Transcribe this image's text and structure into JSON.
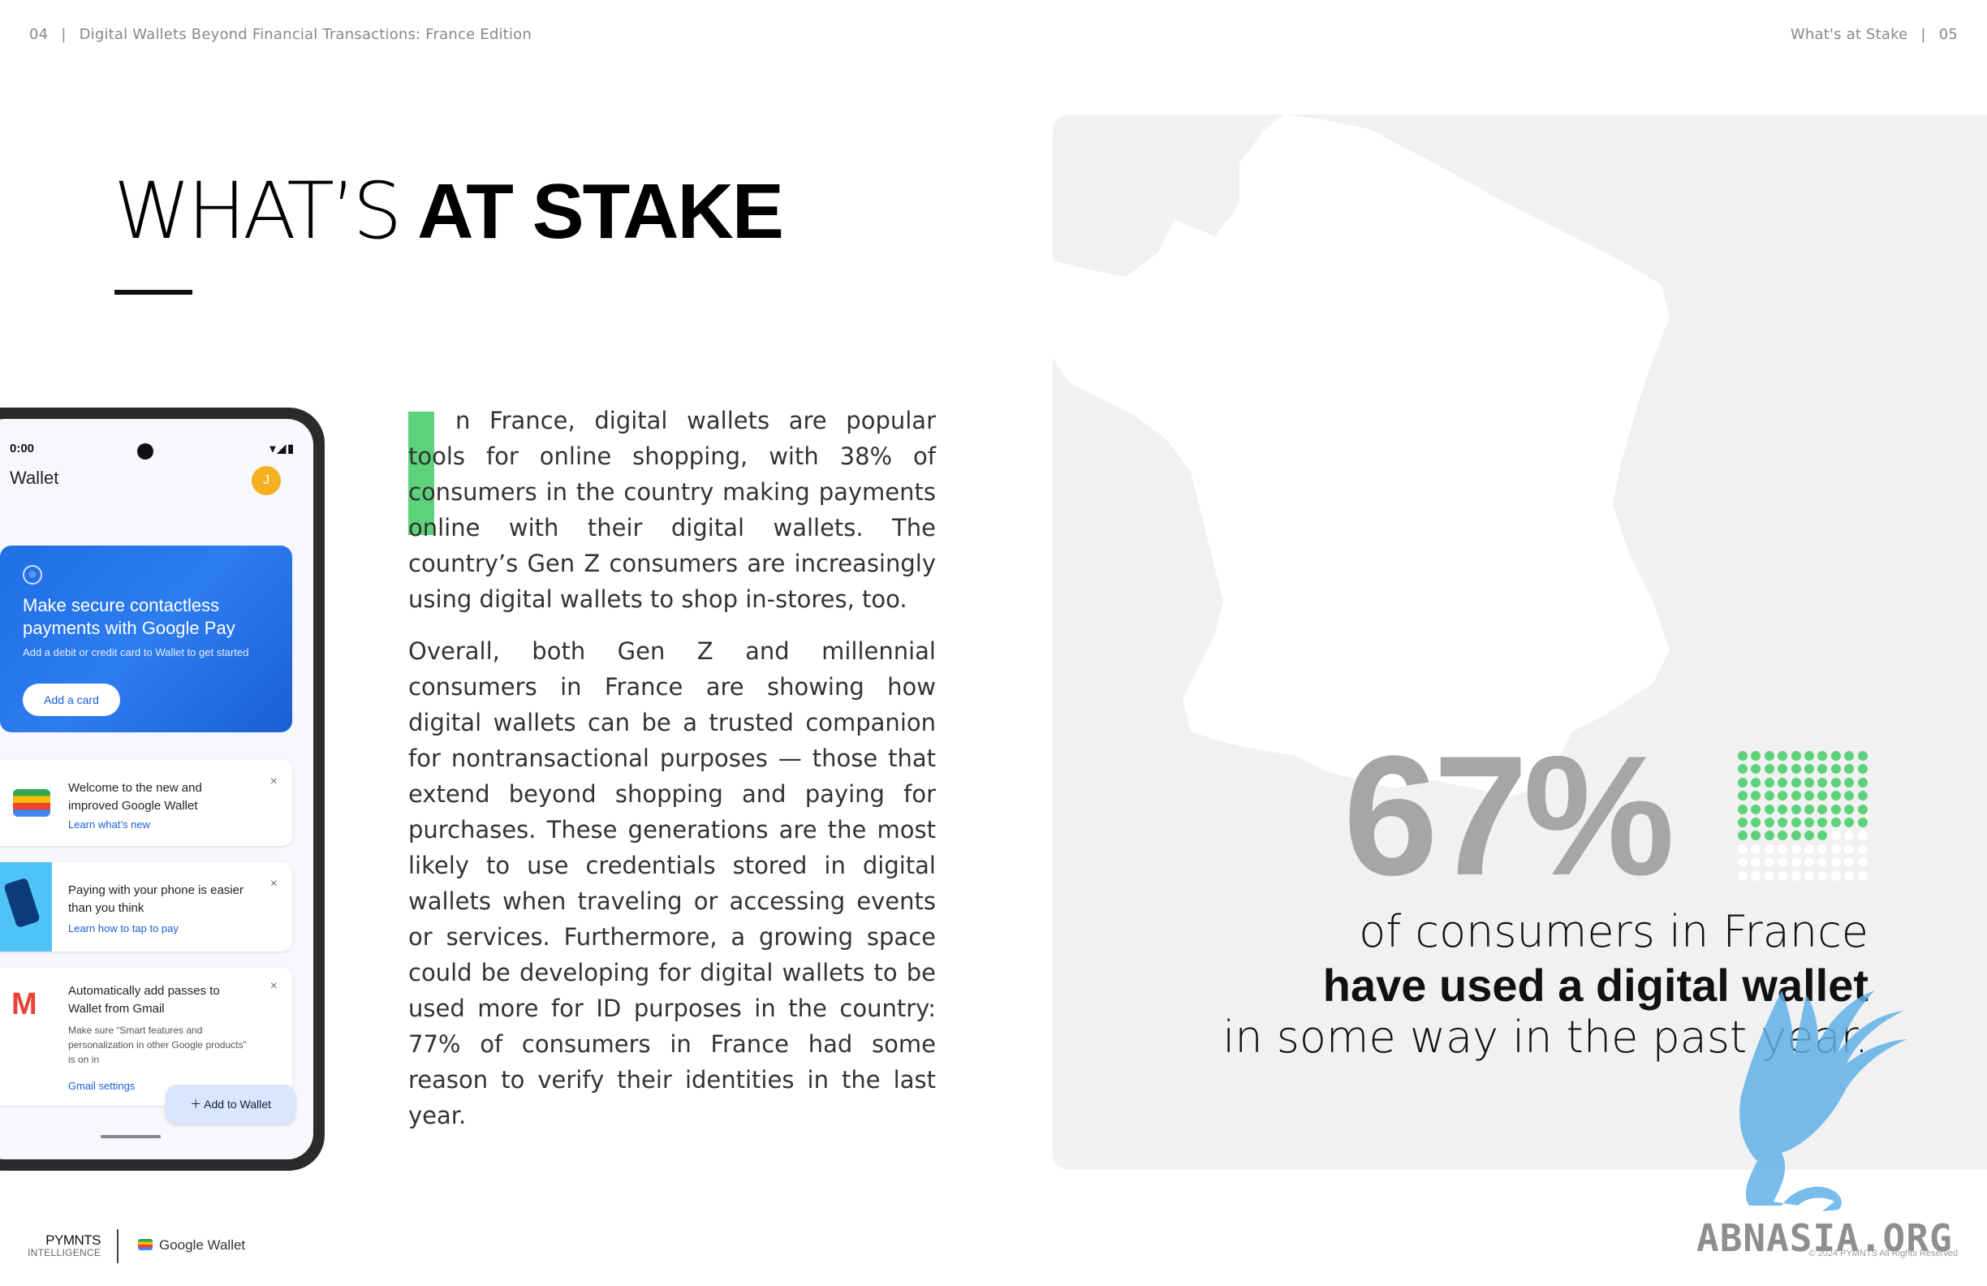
{
  "header": {
    "left_page": "04",
    "left_title": "Digital Wallets Beyond Financial Transactions: France Edition",
    "right_title": "What's at Stake",
    "right_page": "05",
    "separator": "|"
  },
  "title": {
    "light": "WHAT’S",
    "bold": "AT STAKE"
  },
  "phone": {
    "time": "0:00",
    "signal": "▾◢▮",
    "app_title": "Wallet",
    "avatar_letter": "J",
    "promo": {
      "icon": "◎",
      "title": "Make secure contactless payments with Google Pay",
      "subtitle": "Add a debit or credit card to Wallet to get started",
      "button": "Add a card"
    },
    "cards": [
      {
        "title": "Welcome to the new and improved Google Wallet",
        "link": "Learn what’s new",
        "close": "×"
      },
      {
        "title": "Paying with your phone is easier than you think",
        "link": "Learn how to tap to pay",
        "close": "×"
      },
      {
        "title": "Automatically add passes to Wallet from Gmail",
        "desc": "Make sure “Smart features and personalization in other Google products” is on in",
        "link": "Gmail settings",
        "close": "×"
      }
    ],
    "fab_label": "＋  Add to Wallet"
  },
  "body": {
    "paragraph1": "n France, digital wallets are popular tools for online shopping, with 38% of consumers in the country making payments online with their digital wallets. The country’s Gen Z consumers are increasingly using digital wallets to shop in-stores, too.",
    "paragraph2": "Overall, both Gen Z and millennial consumers in France are showing how digital wallets can be a trusted companion for nontransactional purposes — those that extend beyond shopping and paying for purchases. These generations are the most likely to use credentials stored in digital wallets when traveling or accessing events or services. Furthermore, a growing space could be developing for digital wallets to be used more for ID purposes in the country: 77% of consumers in France had some reason to verify their identities in the last year."
  },
  "stat": {
    "value": "67%",
    "fraction": 0.67,
    "line1": "of consumers in France",
    "line2": "have used a digital wallet",
    "line3": "in some way in the past year."
  },
  "colors": {
    "accent_green": "#5cd37a",
    "dot_empty": "#ffffff",
    "big_number": "#a6a6a6",
    "panel": "#f1f1f1"
  },
  "footer": {
    "pymnts_line1": "PYMNTS",
    "pymnts_line2": "INTELLIGENCE",
    "google_wallet": "Google Wallet",
    "copyright": "© 2024 PYMNTS All Rights Reserved"
  },
  "watermark": "ABNASIA.ORG"
}
